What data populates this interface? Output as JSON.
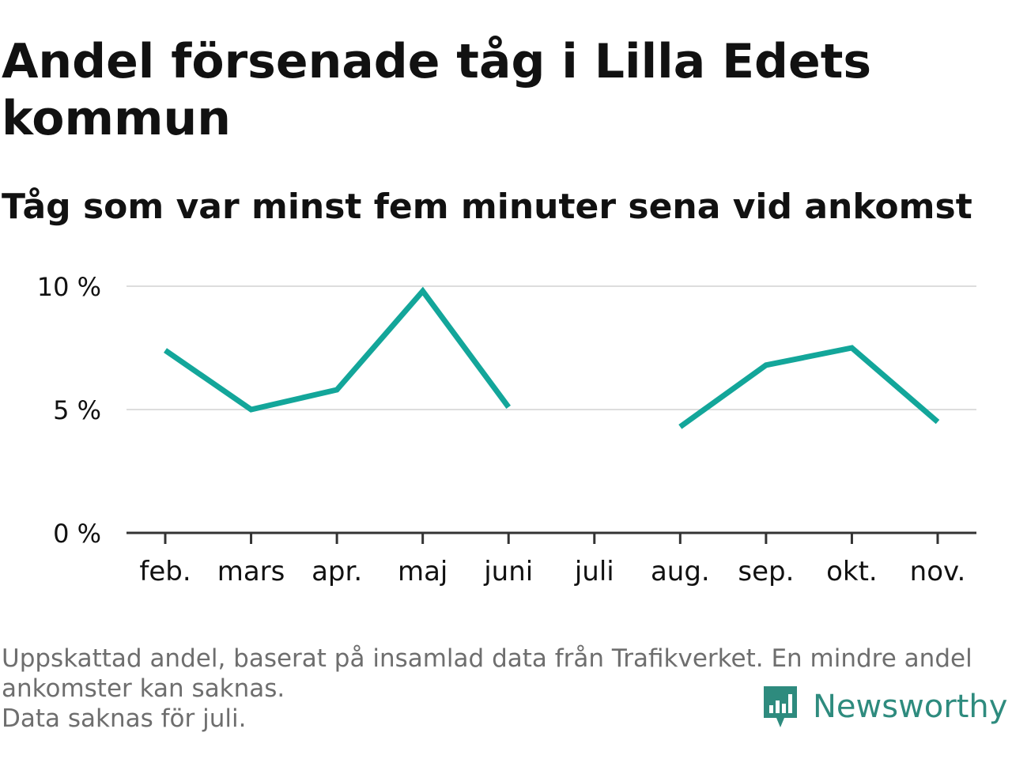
{
  "header": {
    "title": "Andel försenade tåg i Lilla Edets kommun",
    "subtitle": "Tåg som var minst fem minuter sena vid ankomst"
  },
  "footer": {
    "note_line1": "Uppskattad andel, baserat på insamlad data från Trafikverket. En mindre andel",
    "note_line2": "ankomster kan saknas.",
    "note_line3": "Data saknas för juli.",
    "brand": "Newsworthy",
    "brand_icon": "bar-chart-logo-icon"
  },
  "colors": {
    "line": "#13a69a",
    "grid": "#dddddd",
    "axis": "#333333",
    "text": "#111111",
    "footnote": "#6e6e6e",
    "brand": "#2e8b7e"
  },
  "chart_data": {
    "type": "line",
    "categories": [
      "feb.",
      "mars",
      "apr.",
      "maj",
      "juni",
      "juli",
      "aug.",
      "sep.",
      "okt.",
      "nov."
    ],
    "series": [
      {
        "values": [
          7.4,
          5.0,
          5.8,
          9.8,
          5.1,
          null,
          4.3,
          6.8,
          7.5,
          4.5
        ]
      }
    ],
    "ylim": [
      0,
      10
    ],
    "yticks": [
      {
        "value": 0,
        "label": "0 %"
      },
      {
        "value": 5,
        "label": "5 %"
      },
      {
        "value": 10,
        "label": "10 %"
      }
    ],
    "grid": true,
    "legend": "none"
  }
}
